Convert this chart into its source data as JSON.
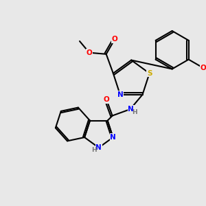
{
  "background_color": "#e8e8e8",
  "figsize": [
    3.0,
    3.0
  ],
  "dpi": 100,
  "atom_colors": {
    "C": "#000000",
    "N": "#0000ff",
    "O": "#ff0000",
    "S": "#ccaa00",
    "H": "#777777"
  },
  "bond_color": "#000000",
  "bond_width": 1.5,
  "font_size": 7.5
}
